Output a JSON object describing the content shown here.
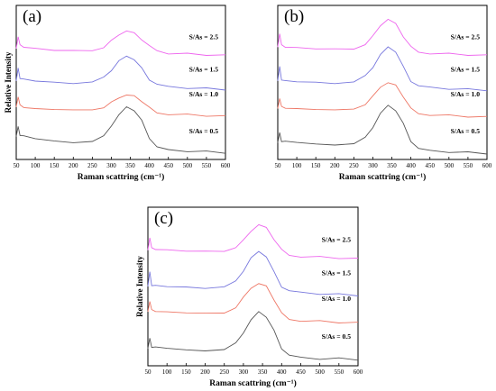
{
  "chart_data": [
    {
      "type": "line",
      "panel_label": "(a)",
      "xlabel": "Raman scattring  (cm⁻¹)",
      "ylabel": "Relative Intensity",
      "xlim": [
        50,
        600
      ],
      "xticks": [
        50,
        100,
        150,
        200,
        250,
        300,
        350,
        400,
        450,
        500,
        550,
        600
      ],
      "series": [
        {
          "name": "S/As = 2.5",
          "color": "#ee66ee",
          "offset": 6.6,
          "values": [
            [
              50,
              7.2
            ],
            [
              55,
              8.0
            ],
            [
              60,
              7.4
            ],
            [
              70,
              7.3
            ],
            [
              100,
              7.2
            ],
            [
              150,
              7.1
            ],
            [
              200,
              7.05
            ],
            [
              250,
              7.1
            ],
            [
              280,
              7.3
            ],
            [
              300,
              7.7
            ],
            [
              320,
              8.1
            ],
            [
              340,
              8.35
            ],
            [
              360,
              8.2
            ],
            [
              380,
              7.8
            ],
            [
              400,
              7.35
            ],
            [
              420,
              7.1
            ],
            [
              450,
              6.9
            ],
            [
              500,
              6.85
            ],
            [
              550,
              6.8
            ],
            [
              600,
              6.75
            ]
          ]
        },
        {
          "name": "S/As = 1.5",
          "color": "#7777dd",
          "offset": 4.5,
          "values": [
            [
              50,
              5.1
            ],
            [
              55,
              5.9
            ],
            [
              60,
              5.3
            ],
            [
              70,
              5.2
            ],
            [
              100,
              5.1
            ],
            [
              150,
              5.0
            ],
            [
              200,
              4.95
            ],
            [
              250,
              5.0
            ],
            [
              280,
              5.3
            ],
            [
              300,
              5.8
            ],
            [
              320,
              6.4
            ],
            [
              340,
              6.7
            ],
            [
              360,
              6.5
            ],
            [
              380,
              5.9
            ],
            [
              400,
              5.2
            ],
            [
              420,
              4.85
            ],
            [
              450,
              4.7
            ],
            [
              500,
              4.65
            ],
            [
              550,
              4.6
            ],
            [
              600,
              4.55
            ]
          ]
        },
        {
          "name": "S/As = 1.0",
          "color": "#ee7766",
          "offset": 2.9,
          "values": [
            [
              50,
              3.4
            ],
            [
              55,
              4.1
            ],
            [
              60,
              3.5
            ],
            [
              70,
              3.4
            ],
            [
              100,
              3.3
            ],
            [
              150,
              3.25
            ],
            [
              200,
              3.2
            ],
            [
              250,
              3.25
            ],
            [
              280,
              3.4
            ],
            [
              300,
              3.7
            ],
            [
              320,
              4.0
            ],
            [
              340,
              4.2
            ],
            [
              360,
              4.1
            ],
            [
              380,
              3.8
            ],
            [
              400,
              3.35
            ],
            [
              420,
              3.05
            ],
            [
              450,
              2.95
            ],
            [
              500,
              2.9
            ],
            [
              550,
              2.85
            ],
            [
              600,
              2.8
            ]
          ]
        },
        {
          "name": "S/As = 0.5",
          "color": "#555555",
          "offset": 0.5,
          "values": [
            [
              50,
              1.5
            ],
            [
              55,
              2.1
            ],
            [
              60,
              1.6
            ],
            [
              70,
              1.5
            ],
            [
              100,
              1.35
            ],
            [
              150,
              1.2
            ],
            [
              200,
              1.1
            ],
            [
              250,
              1.15
            ],
            [
              280,
              1.5
            ],
            [
              300,
              2.2
            ],
            [
              320,
              2.9
            ],
            [
              340,
              3.4
            ],
            [
              360,
              3.2
            ],
            [
              380,
              2.5
            ],
            [
              400,
              1.4
            ],
            [
              420,
              0.8
            ],
            [
              450,
              0.6
            ],
            [
              500,
              0.55
            ],
            [
              550,
              0.5
            ],
            [
              600,
              0.45
            ]
          ]
        }
      ]
    },
    {
      "type": "line",
      "panel_label": "(b)",
      "xlabel": "Raman scattring  (cm⁻¹)",
      "ylabel": "",
      "xlim": [
        50,
        600
      ],
      "xticks": [
        50,
        100,
        150,
        200,
        250,
        300,
        350,
        400,
        450,
        500,
        550,
        600
      ],
      "series": [
        {
          "name": "S/As = 2.5",
          "color": "#ee66ee",
          "offset": 6.6,
          "values": [
            [
              50,
              7.3
            ],
            [
              55,
              8.2
            ],
            [
              60,
              7.4
            ],
            [
              70,
              7.3
            ],
            [
              100,
              7.25
            ],
            [
              150,
              7.2
            ],
            [
              200,
              7.15
            ],
            [
              250,
              7.2
            ],
            [
              280,
              7.5
            ],
            [
              300,
              8.0
            ],
            [
              320,
              8.7
            ],
            [
              340,
              9.1
            ],
            [
              360,
              8.8
            ],
            [
              380,
              8.0
            ],
            [
              400,
              7.3
            ],
            [
              420,
              7.0
            ],
            [
              450,
              6.9
            ],
            [
              500,
              6.85
            ],
            [
              550,
              6.8
            ],
            [
              600,
              6.75
            ]
          ]
        },
        {
          "name": "S/As = 1.5",
          "color": "#7777dd",
          "offset": 4.5,
          "values": [
            [
              50,
              5.1
            ],
            [
              55,
              6.0
            ],
            [
              60,
              5.2
            ],
            [
              70,
              5.1
            ],
            [
              100,
              5.05
            ],
            [
              150,
              5.0
            ],
            [
              200,
              4.95
            ],
            [
              250,
              5.0
            ],
            [
              280,
              5.4
            ],
            [
              300,
              6.0
            ],
            [
              320,
              6.8
            ],
            [
              340,
              7.3
            ],
            [
              360,
              7.0
            ],
            [
              380,
              6.0
            ],
            [
              400,
              5.1
            ],
            [
              420,
              4.75
            ],
            [
              450,
              4.65
            ],
            [
              500,
              4.6
            ],
            [
              550,
              4.55
            ],
            [
              600,
              4.5
            ]
          ]
        },
        {
          "name": "S/As = 1.0",
          "color": "#ee7766",
          "offset": 2.9,
          "values": [
            [
              50,
              3.3
            ],
            [
              55,
              4.0
            ],
            [
              60,
              3.4
            ],
            [
              70,
              3.35
            ],
            [
              100,
              3.3
            ],
            [
              150,
              3.25
            ],
            [
              200,
              3.2
            ],
            [
              250,
              3.3
            ],
            [
              280,
              3.6
            ],
            [
              300,
              4.1
            ],
            [
              320,
              4.7
            ],
            [
              340,
              5.0
            ],
            [
              360,
              4.8
            ],
            [
              380,
              4.1
            ],
            [
              400,
              3.3
            ],
            [
              420,
              3.0
            ],
            [
              450,
              2.9
            ],
            [
              500,
              2.85
            ],
            [
              550,
              2.8
            ],
            [
              600,
              2.75
            ]
          ]
        },
        {
          "name": "S/As = 0.5",
          "color": "#555555",
          "offset": 0.5,
          "values": [
            [
              50,
              1.1
            ],
            [
              55,
              1.7
            ],
            [
              60,
              1.2
            ],
            [
              70,
              1.15
            ],
            [
              100,
              1.1
            ],
            [
              150,
              1.0
            ],
            [
              200,
              0.95
            ],
            [
              250,
              1.0
            ],
            [
              280,
              1.4
            ],
            [
              300,
              2.1
            ],
            [
              320,
              3.0
            ],
            [
              340,
              3.5
            ],
            [
              360,
              3.2
            ],
            [
              380,
              2.3
            ],
            [
              400,
              1.2
            ],
            [
              420,
              0.7
            ],
            [
              450,
              0.55
            ],
            [
              500,
              0.5
            ],
            [
              550,
              0.45
            ],
            [
              600,
              0.4
            ]
          ]
        }
      ]
    },
    {
      "type": "line",
      "panel_label": "(c)",
      "xlabel": "Raman scattring  (cm⁻¹)",
      "ylabel": "Relative Intensity",
      "xlim": [
        50,
        600
      ],
      "xticks": [
        50,
        100,
        150,
        200,
        250,
        300,
        350,
        400,
        450,
        500,
        550,
        600
      ],
      "series": [
        {
          "name": "S/As = 2.5",
          "color": "#ee66ee",
          "offset": 6.6,
          "values": [
            [
              50,
              7.3
            ],
            [
              55,
              8.1
            ],
            [
              60,
              7.4
            ],
            [
              70,
              7.35
            ],
            [
              100,
              7.3
            ],
            [
              150,
              7.25
            ],
            [
              200,
              7.2
            ],
            [
              250,
              7.25
            ],
            [
              280,
              7.5
            ],
            [
              300,
              7.9
            ],
            [
              320,
              8.5
            ],
            [
              340,
              8.9
            ],
            [
              360,
              8.7
            ],
            [
              380,
              8.0
            ],
            [
              400,
              7.3
            ],
            [
              420,
              7.0
            ],
            [
              450,
              6.9
            ],
            [
              500,
              6.85
            ],
            [
              550,
              6.8
            ],
            [
              600,
              6.75
            ]
          ]
        },
        {
          "name": "S/As = 1.5",
          "color": "#7777dd",
          "offset": 4.5,
          "values": [
            [
              50,
              5.0
            ],
            [
              55,
              5.9
            ],
            [
              60,
              5.1
            ],
            [
              70,
              5.05
            ],
            [
              100,
              5.0
            ],
            [
              150,
              4.95
            ],
            [
              200,
              4.9
            ],
            [
              250,
              4.95
            ],
            [
              280,
              5.3
            ],
            [
              300,
              6.0
            ],
            [
              320,
              6.8
            ],
            [
              340,
              7.2
            ],
            [
              360,
              6.9
            ],
            [
              380,
              5.9
            ],
            [
              400,
              5.0
            ],
            [
              420,
              4.7
            ],
            [
              450,
              4.6
            ],
            [
              500,
              4.55
            ],
            [
              550,
              4.5
            ],
            [
              600,
              4.45
            ]
          ]
        },
        {
          "name": "S/As = 1.0",
          "color": "#ee7766",
          "offset": 2.9,
          "values": [
            [
              50,
              3.4
            ],
            [
              55,
              4.1
            ],
            [
              60,
              3.5
            ],
            [
              70,
              3.45
            ],
            [
              100,
              3.4
            ],
            [
              150,
              3.35
            ],
            [
              200,
              3.3
            ],
            [
              250,
              3.35
            ],
            [
              280,
              3.7
            ],
            [
              300,
              4.3
            ],
            [
              320,
              4.9
            ],
            [
              340,
              5.2
            ],
            [
              360,
              5.0
            ],
            [
              380,
              4.2
            ],
            [
              400,
              3.3
            ],
            [
              420,
              2.95
            ],
            [
              450,
              2.85
            ],
            [
              500,
              2.8
            ],
            [
              550,
              2.75
            ],
            [
              600,
              2.7
            ]
          ]
        },
        {
          "name": "S/As = 0.5",
          "color": "#555555",
          "offset": 0.5,
          "values": [
            [
              50,
              1.1
            ],
            [
              55,
              1.7
            ],
            [
              60,
              1.2
            ],
            [
              70,
              1.15
            ],
            [
              100,
              1.1
            ],
            [
              150,
              1.0
            ],
            [
              200,
              0.95
            ],
            [
              250,
              1.0
            ],
            [
              280,
              1.4
            ],
            [
              300,
              2.1
            ],
            [
              320,
              2.9
            ],
            [
              340,
              3.4
            ],
            [
              360,
              3.1
            ],
            [
              380,
              2.2
            ],
            [
              400,
              1.1
            ],
            [
              420,
              0.65
            ],
            [
              450,
              0.5
            ],
            [
              500,
              0.45
            ],
            [
              550,
              0.45
            ],
            [
              600,
              0.4
            ]
          ]
        }
      ]
    }
  ]
}
